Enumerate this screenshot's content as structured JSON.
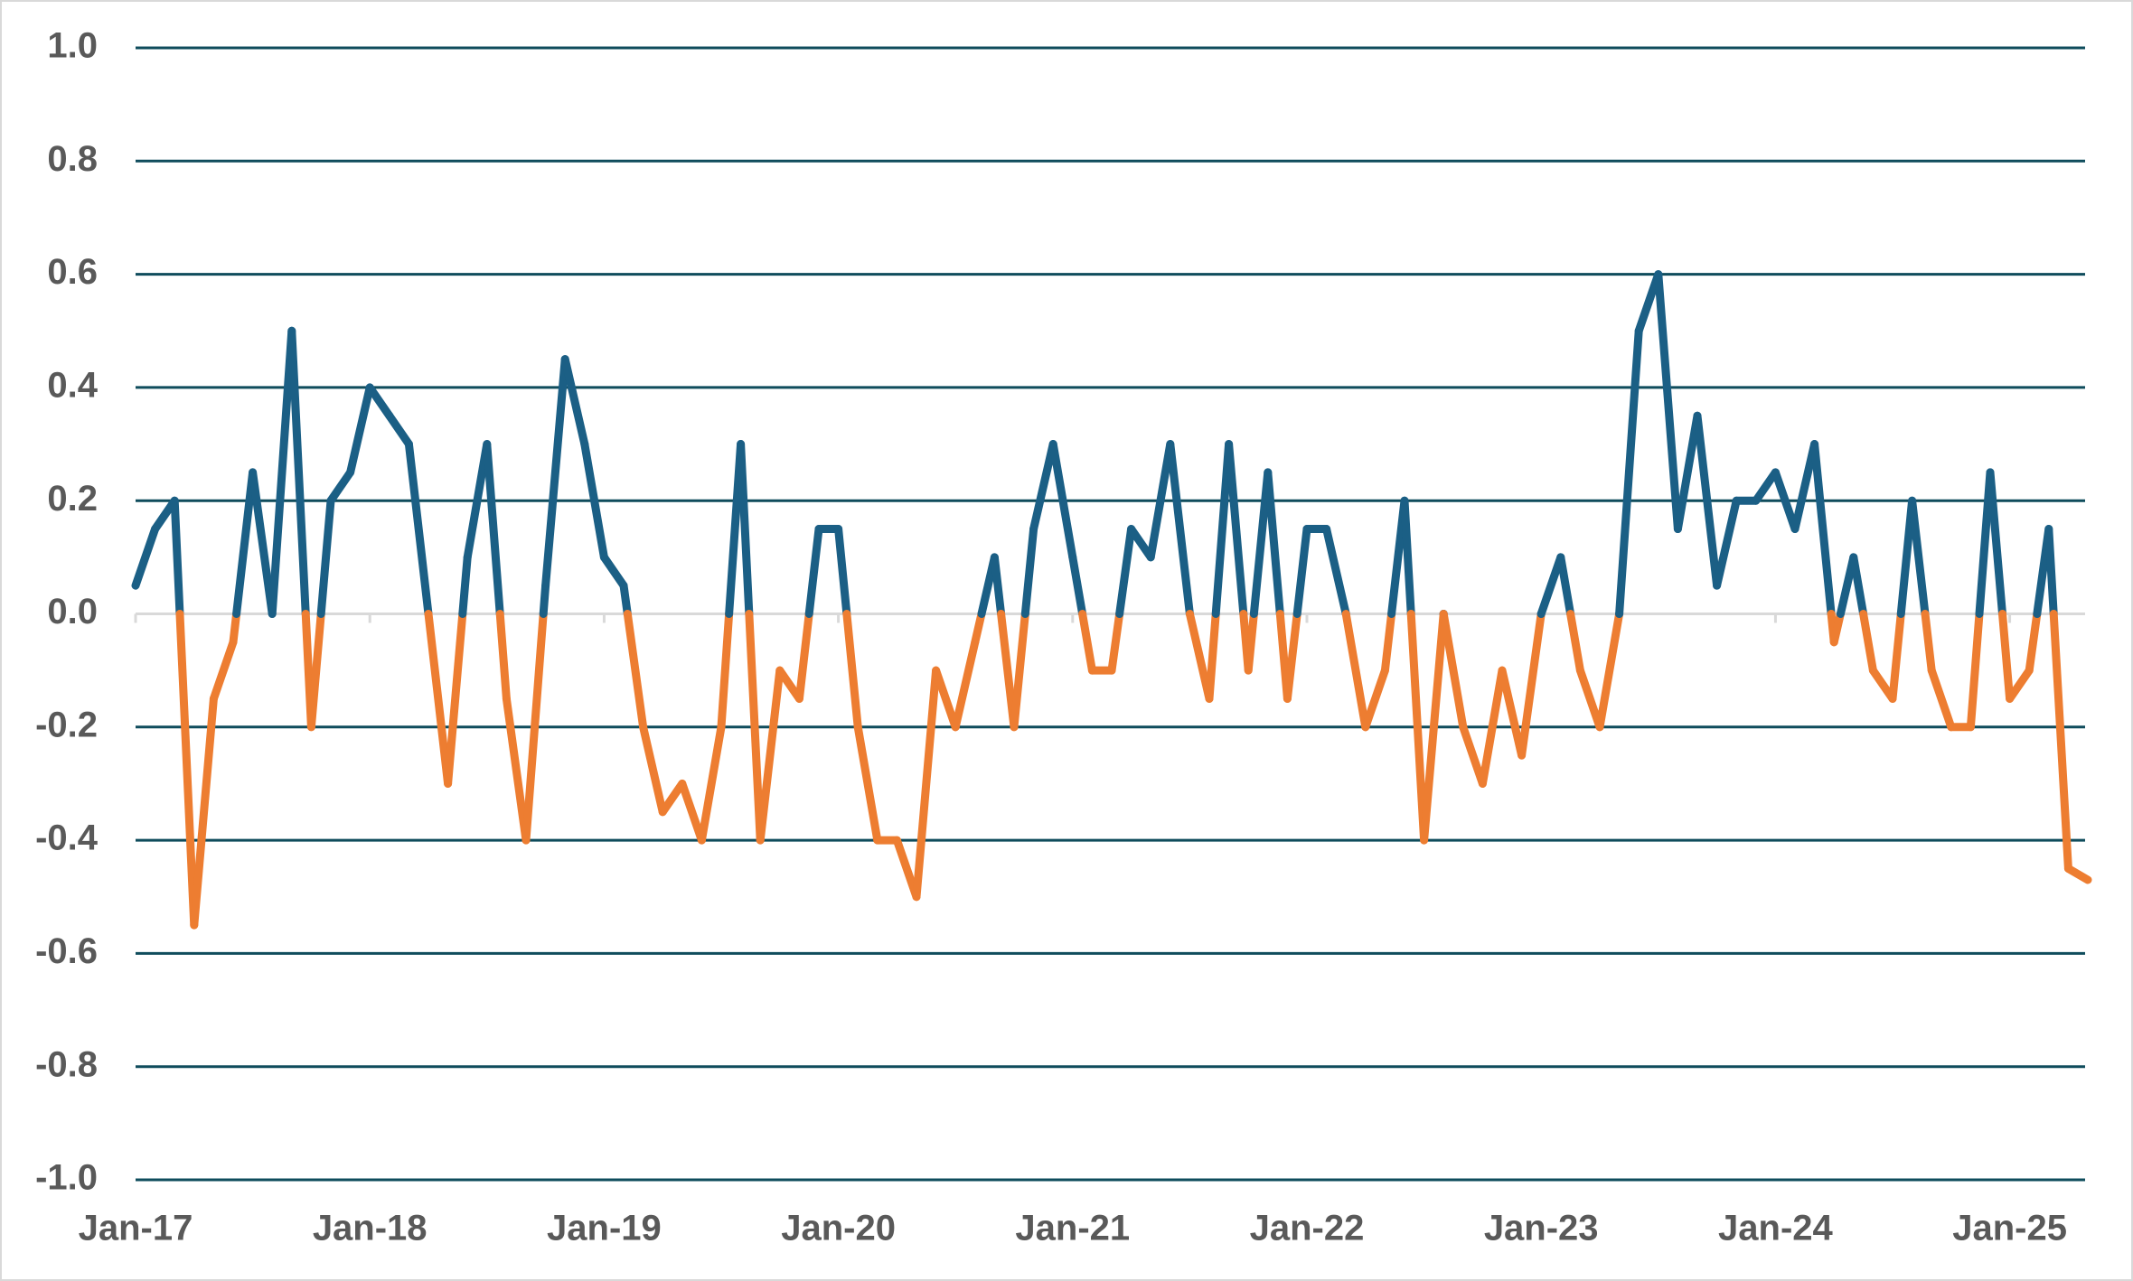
{
  "chart_data": {
    "type": "line",
    "categories": [
      "Jan-17",
      null,
      null,
      null,
      null,
      null,
      null,
      null,
      null,
      null,
      null,
      null,
      "Jan-18",
      null,
      null,
      null,
      null,
      null,
      null,
      null,
      null,
      null,
      null,
      null,
      "Jan-19",
      null,
      null,
      null,
      null,
      null,
      null,
      null,
      null,
      null,
      null,
      null,
      "Jan-20",
      null,
      null,
      null,
      null,
      null,
      null,
      null,
      null,
      null,
      null,
      null,
      "Jan-21",
      null,
      null,
      null,
      null,
      null,
      null,
      null,
      null,
      null,
      null,
      null,
      "Jan-22",
      null,
      null,
      null,
      null,
      null,
      null,
      null,
      null,
      null,
      null,
      null,
      "Jan-23",
      null,
      null,
      null,
      null,
      null,
      null,
      null,
      null,
      null,
      null,
      null,
      "Jan-24",
      null,
      null,
      null,
      null,
      null,
      null,
      null,
      null,
      null,
      null,
      null,
      "Jan-25",
      null,
      null,
      null,
      null
    ],
    "series": [
      {
        "color": "#1b5f85",
        "negative_color": "#ed7d31",
        "values": [
          0.05,
          0.15,
          0.2,
          -0.55,
          -0.15,
          -0.05,
          0.25,
          0.0,
          0.5,
          -0.2,
          0.2,
          0.25,
          0.4,
          0.35,
          0.3,
          0.0,
          -0.3,
          0.1,
          0.3,
          -0.15,
          -0.4,
          0.05,
          0.45,
          0.3,
          0.1,
          0.05,
          -0.2,
          -0.35,
          -0.3,
          -0.4,
          -0.2,
          0.3,
          -0.4,
          -0.1,
          -0.15,
          0.15,
          0.15,
          -0.2,
          -0.4,
          -0.4,
          -0.5,
          -0.1,
          -0.2,
          -0.05,
          0.1,
          -0.2,
          0.15,
          0.3,
          0.1,
          -0.1,
          -0.1,
          0.15,
          0.1,
          0.3,
          0.0,
          -0.15,
          0.3,
          -0.1,
          0.25,
          -0.15,
          0.15,
          0.15,
          0.0,
          -0.2,
          -0.1,
          0.2,
          -0.4,
          0.0,
          -0.2,
          -0.3,
          -0.1,
          -0.25,
          0.0,
          0.1,
          -0.1,
          -0.2,
          0.0,
          0.5,
          0.6,
          0.15,
          0.35,
          0.05,
          0.2,
          0.2,
          0.25,
          0.15,
          0.3,
          -0.05,
          0.1,
          -0.1,
          -0.15,
          0.2,
          -0.1,
          -0.2,
          -0.2,
          0.25,
          -0.15,
          -0.1,
          0.15,
          -0.45,
          -0.47
        ]
      }
    ],
    "ylim": [
      -1,
      1
    ],
    "yticks": [
      {
        "value": -1,
        "label": "-1.0"
      },
      -0.8,
      -0.6,
      -0.4,
      -0.2,
      {
        "value": 0,
        "label": "0.0"
      },
      0.2,
      0.4,
      0.6,
      0.8,
      {
        "value": 1,
        "label": "1.0"
      }
    ],
    "grid": true
  }
}
